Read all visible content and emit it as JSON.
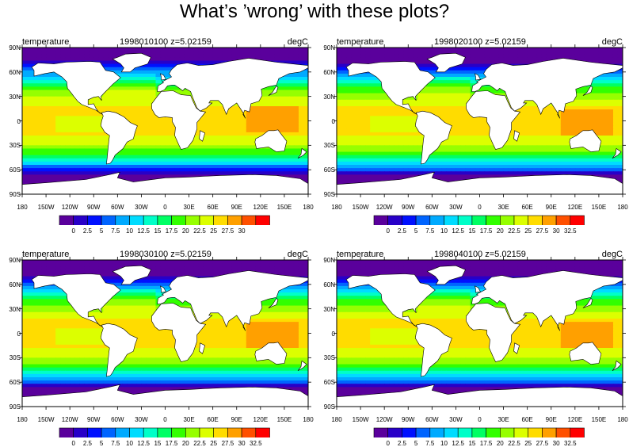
{
  "title": "What’s ’wrong’ with these plots?",
  "lat_labels": [
    "90N",
    "60N",
    "30N",
    "0",
    "30S",
    "60S",
    "90S"
  ],
  "lon_labels": [
    "180",
    "150W",
    "120W",
    "90W",
    "60W",
    "30W",
    "0",
    "30E",
    "60E",
    "90E",
    "120E",
    "150E",
    "180"
  ],
  "panels": [
    {
      "variable": "temperature",
      "time_level": "1998010100  z=5.02159",
      "units": "degC",
      "colorbar": {
        "labels": [
          "0",
          "2.5",
          "5",
          "7.5",
          "10",
          "12.5",
          "15",
          "17.5",
          "20",
          "22.5",
          "25",
          "27.5",
          "30"
        ],
        "colors": [
          "#5a009c",
          "#2800c8",
          "#0010ff",
          "#0064ff",
          "#00aaff",
          "#00dcff",
          "#00ffc8",
          "#00ff64",
          "#32ff00",
          "#96ff00",
          "#dcff00",
          "#ffdc00",
          "#ffa000",
          "#ff5000",
          "#ff0000"
        ]
      }
    },
    {
      "variable": "temperature",
      "time_level": "1998020100  z=5.02159",
      "units": "degC",
      "colorbar": {
        "labels": [
          "0",
          "2.5",
          "5",
          "7.5",
          "10",
          "12.5",
          "15",
          "17.5",
          "20",
          "22.5",
          "25",
          "27.5",
          "30",
          "32.5"
        ],
        "colors": [
          "#5a009c",
          "#2800c8",
          "#0010ff",
          "#0064ff",
          "#00aaff",
          "#00dcff",
          "#00ffc8",
          "#00ff64",
          "#32ff00",
          "#96ff00",
          "#dcff00",
          "#ffdc00",
          "#ffa000",
          "#ff5000",
          "#ff0000"
        ]
      }
    },
    {
      "variable": "temperature",
      "time_level": "1998030100  z=5.02159",
      "units": "degC",
      "colorbar": {
        "labels": [
          "0",
          "2.5",
          "5",
          "7.5",
          "10",
          "12.5",
          "15",
          "17.5",
          "20",
          "22.5",
          "25",
          "27.5",
          "30",
          "32.5"
        ],
        "colors": [
          "#5a009c",
          "#2800c8",
          "#0010ff",
          "#0064ff",
          "#00aaff",
          "#00dcff",
          "#00ffc8",
          "#00ff64",
          "#32ff00",
          "#96ff00",
          "#dcff00",
          "#ffdc00",
          "#ffa000",
          "#ff5000",
          "#ff0000"
        ]
      }
    },
    {
      "variable": "temperature",
      "time_level": "1998040100  z=5.02159",
      "units": "degC",
      "colorbar": {
        "labels": [
          "0",
          "2.5",
          "5",
          "7.5",
          "10",
          "12.5",
          "15",
          "17.5",
          "20",
          "22.5",
          "25",
          "27.5",
          "30",
          "32.5"
        ],
        "colors": [
          "#5a009c",
          "#2800c8",
          "#0010ff",
          "#0064ff",
          "#00aaff",
          "#00dcff",
          "#00ffc8",
          "#00ff64",
          "#32ff00",
          "#96ff00",
          "#dcff00",
          "#ffdc00",
          "#ffa000",
          "#ff5000",
          "#ff0000"
        ]
      }
    }
  ]
}
